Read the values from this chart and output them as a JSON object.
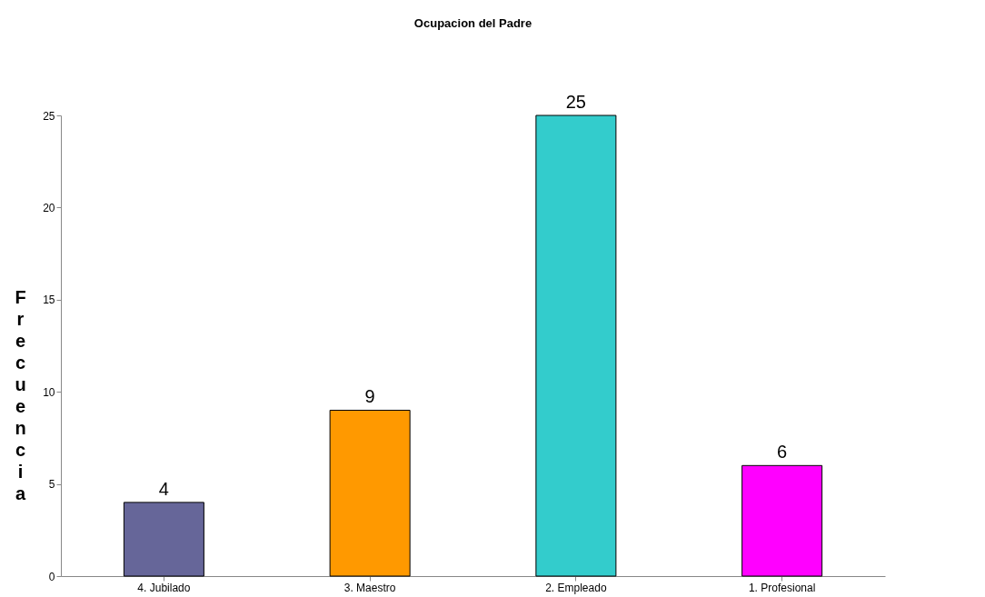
{
  "chart_data": {
    "type": "bar",
    "title": "Ocupacion del Padre",
    "ylabel": "Frecuencia",
    "categories": [
      "4. Jubilado",
      "3. Maestro",
      "2. Empleado",
      "1. Profesional"
    ],
    "values": [
      4,
      9,
      25,
      6
    ],
    "colors": [
      "#666699",
      "#ff9900",
      "#33cccc",
      "#ff00ff"
    ],
    "ylim": [
      0,
      25
    ],
    "yticks": [
      0,
      5,
      10,
      15,
      20,
      25
    ],
    "data_labels": true,
    "grid": false
  }
}
